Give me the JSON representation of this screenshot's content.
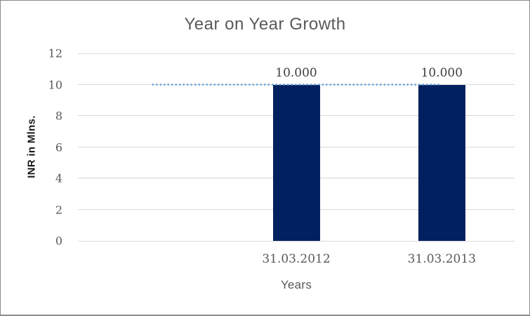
{
  "window": {
    "background": "#FFFFFF",
    "border_color": "#8C8C8C"
  },
  "chart_data": {
    "type": "bar",
    "title": "Year on Year Growth",
    "xlabel": "Years",
    "ylabel": "INR in Mlns.",
    "ylim": [
      0,
      12
    ],
    "yticks": [
      0,
      2,
      4,
      6,
      8,
      10,
      12
    ],
    "grid": true,
    "gridline_color": "#D9D9D9",
    "legend": "none",
    "categories": [
      "",
      "31.03.2012",
      "31.03.2013"
    ],
    "series": [
      {
        "id": "column-series",
        "type": "column",
        "color": "#002060",
        "values": [
          null,
          10,
          10
        ],
        "data_labels": [
          null,
          "10.000",
          "10.000"
        ]
      },
      {
        "id": "dotted-line-series",
        "type": "dotted-line",
        "color": "#5B9BD5",
        "values": [
          10,
          10,
          10
        ]
      }
    ],
    "text_colors": {
      "title": "#595959",
      "ticks": "#595959",
      "data_labels": "#3D3D3D",
      "y_axis_title": "#1A1A1A",
      "x_axis_title": "#595959"
    }
  }
}
